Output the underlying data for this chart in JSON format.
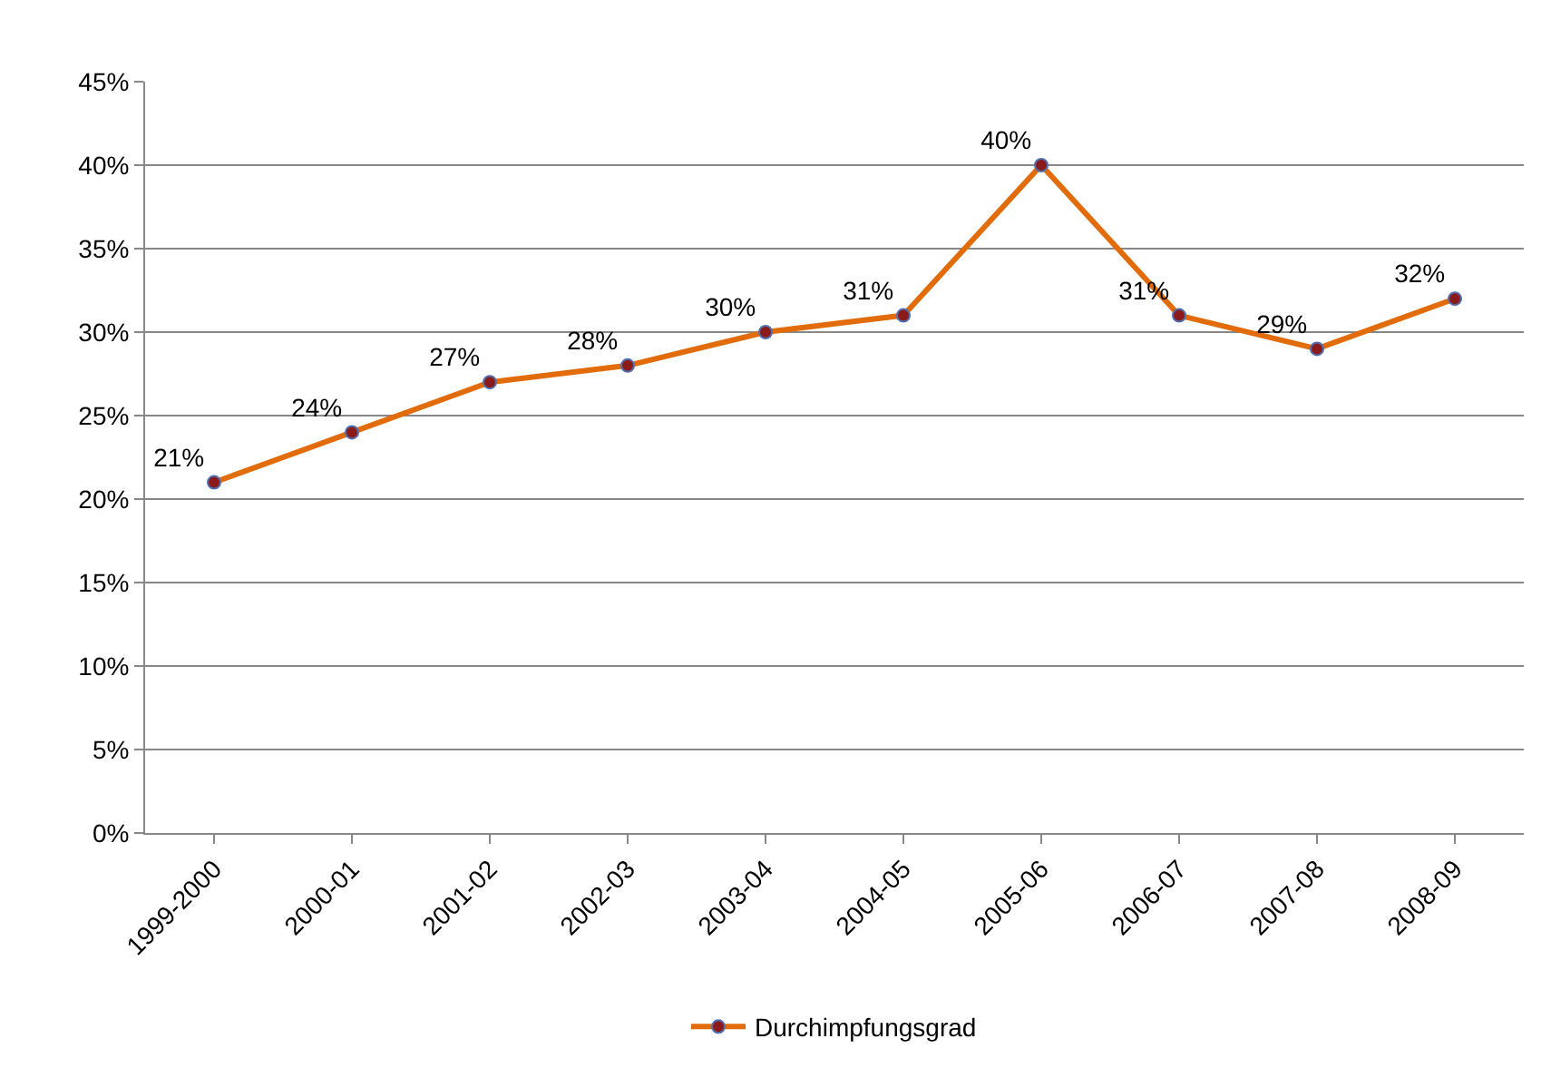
{
  "chart_data": {
    "type": "line",
    "categories": [
      "1999-2000",
      "2000-01",
      "2001-02",
      "2002-03",
      "2003-04",
      "2004-05",
      "2005-06",
      "2006-07",
      "2007-08",
      "2008-09"
    ],
    "series": [
      {
        "name": "Durchimpfungsgrad",
        "color": "#e36c0a",
        "values": [
          21,
          24,
          27,
          28,
          30,
          31,
          40,
          31,
          29,
          32
        ],
        "value_labels": [
          "21%",
          "24%",
          "27%",
          "28%",
          "30%",
          "31%",
          "40%",
          "31%",
          "29%",
          "32%"
        ]
      }
    ],
    "ylim": [
      0,
      45
    ],
    "yticks": [
      {
        "value": 0,
        "label": "0%"
      },
      {
        "value": 5,
        "label": "5%"
      },
      {
        "value": 10,
        "label": "10%"
      },
      {
        "value": 15,
        "label": "15%"
      },
      {
        "value": 20,
        "label": "20%"
      },
      {
        "value": 25,
        "label": "25%"
      },
      {
        "value": 30,
        "label": "30%"
      },
      {
        "value": 35,
        "label": "35%"
      },
      {
        "value": 40,
        "label": "40%"
      },
      {
        "value": 45,
        "label": "45%"
      }
    ],
    "grid": "y",
    "legend": "bottom",
    "marker": "circle",
    "line_style": "solid"
  }
}
